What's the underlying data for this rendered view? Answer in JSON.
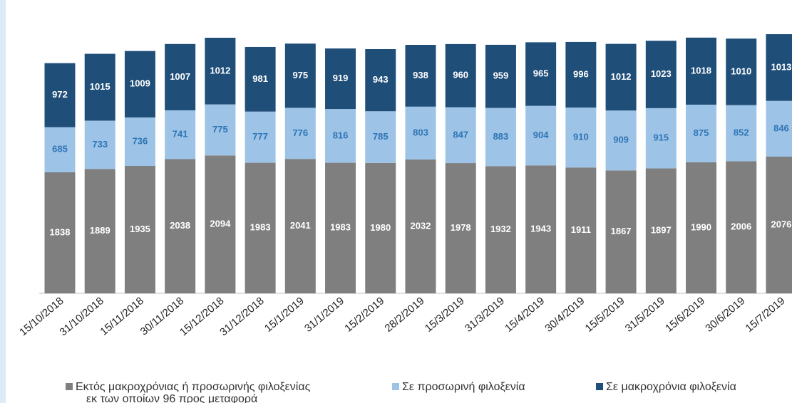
{
  "chart_data": {
    "type": "stacked_bar",
    "categories": [
      "15/10/2018",
      "31/10/2018",
      "15/11/2018",
      "30/11/2018",
      "15/12/2018",
      "31/12/2018",
      "15/1/2019",
      "31/1/2019",
      "15/2/2019",
      "28/2/2019",
      "15/3/2019",
      "31/3/2019",
      "15/4/2019",
      "30/4/2019",
      "15/5/2019",
      "31/5/2019",
      "15/6/2019",
      "30/6/2019",
      "15/7/2019"
    ],
    "series": [
      {
        "name": "Εκτός μακροχρόνιας ή προσωρινής φιλοξενίας",
        "color": "#7f7f7f",
        "label_color": "#ffffff",
        "values": [
          1838,
          1889,
          1935,
          2038,
          2094,
          1983,
          2041,
          1983,
          1980,
          2032,
          1978,
          1932,
          1943,
          1911,
          1867,
          1897,
          1990,
          2006,
          2076
        ]
      },
      {
        "name": "Σε προσωρινή φιλοξενία",
        "color": "#9dc3e6",
        "label_color": "#2e75b6",
        "values": [
          685,
          733,
          736,
          741,
          775,
          777,
          776,
          816,
          785,
          803,
          847,
          883,
          904,
          910,
          909,
          915,
          875,
          852,
          846
        ]
      },
      {
        "name": "Σε μακροχρόνια φιλοξενία",
        "color": "#1f4e79",
        "label_color": "#ffffff",
        "values": [
          972,
          1015,
          1009,
          1007,
          1012,
          981,
          975,
          919,
          943,
          938,
          960,
          959,
          965,
          996,
          1012,
          1023,
          1018,
          1010,
          1013
        ]
      }
    ],
    "legend_note": "εκ των οποίων 96 προς μεταφορά",
    "ylim": [
      0,
      4000
    ]
  }
}
